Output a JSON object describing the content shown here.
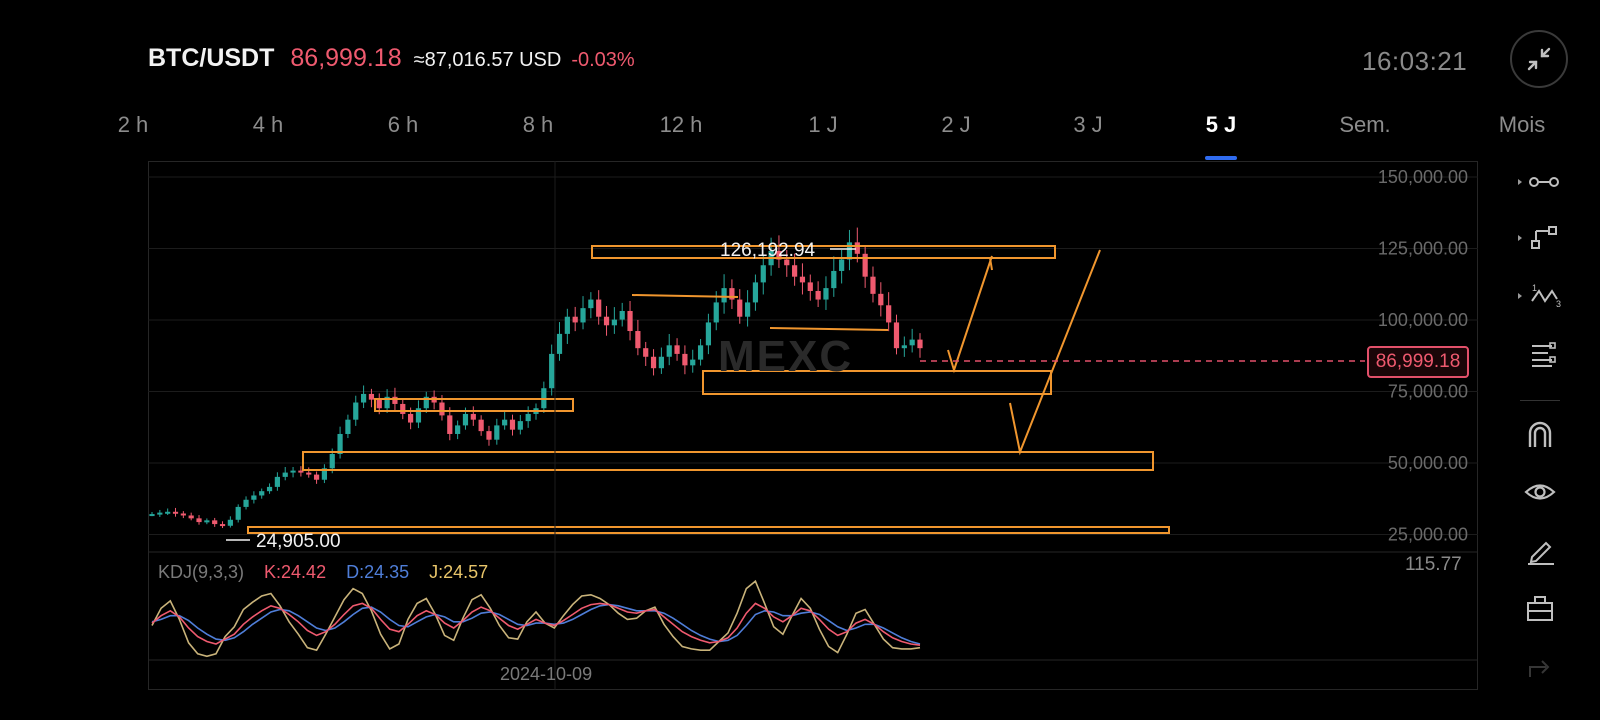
{
  "header": {
    "pair": "BTC/USDT",
    "price": "86,999.18",
    "usd_equiv": "≈87,016.57 USD",
    "change": "-0.03%",
    "clock": "16:03:21",
    "collapse_icon": "collapse-arrows-icon"
  },
  "tabs": [
    {
      "label": "2 h"
    },
    {
      "label": "4 h"
    },
    {
      "label": "6 h"
    },
    {
      "label": "8 h"
    },
    {
      "label": "12 h"
    },
    {
      "label": "1 J"
    },
    {
      "label": "2 J"
    },
    {
      "label": "3 J"
    },
    {
      "label": "5 J",
      "active": true
    },
    {
      "label": "Sem."
    },
    {
      "label": "Mois"
    }
  ],
  "price_tag": "86,999.18",
  "annotations": {
    "high": "126,192.94",
    "low": "24,905.00"
  },
  "watermark": "MEXC",
  "kdj": {
    "name": "KDJ(9,3,3)",
    "k": "K:24.42",
    "d": "D:24.35",
    "j": "J:24.57",
    "scale_max": "115.77"
  },
  "date_label": "2024-10-09",
  "toolbar": [
    {
      "icon": "horizontal-line-icon"
    },
    {
      "icon": "trend-line-icon"
    },
    {
      "icon": "pattern-icon"
    },
    {
      "icon": "fibonacci-icon"
    },
    {
      "icon": "magnet-icon"
    },
    {
      "icon": "eye-icon"
    },
    {
      "icon": "pencil-icon"
    },
    {
      "icon": "briefcase-icon"
    },
    {
      "icon": "share-icon"
    }
  ],
  "colors": {
    "up": "#26a69a",
    "down": "#ef5a6f",
    "drawing": "#f0962e",
    "accent": "#2f6bf0",
    "k": "#ef5a6f",
    "d": "#4f7ed8",
    "j": "#c9b37a"
  },
  "chart_data": {
    "type": "candlestick",
    "y_ticks": [
      "150,000.00",
      "125,000.00",
      "100,000.00",
      "75,000.00",
      "50,000.00",
      "25,000.00"
    ],
    "ylim": [
      18000,
      150000
    ],
    "last_price": 86999.18,
    "high": 126192.94,
    "low": 24905.0,
    "close_series": [
      29000,
      29500,
      29800,
      29200,
      28500,
      27500,
      26200,
      26800,
      25500,
      24905,
      27000,
      31500,
      34000,
      35500,
      37000,
      38500,
      42000,
      43500,
      44200,
      43500,
      42800,
      41000,
      45000,
      50000,
      57000,
      62000,
      68000,
      71000,
      69000,
      66000,
      70000,
      67500,
      64000,
      61000,
      66000,
      70000,
      68000,
      63500,
      57000,
      60000,
      64000,
      62000,
      58000,
      55000,
      60000,
      62000,
      58500,
      61500,
      64000,
      66000,
      73000,
      85000,
      92000,
      98000,
      96000,
      101000,
      104000,
      98000,
      95000,
      97000,
      100000,
      93000,
      87000,
      84000,
      80000,
      84000,
      88000,
      85000,
      81000,
      83000,
      88000,
      96000,
      103000,
      108000,
      104000,
      98000,
      103000,
      110000,
      116000,
      121000,
      118000,
      116000,
      112000,
      110000,
      107000,
      104000,
      108000,
      114000,
      118000,
      124000,
      120000,
      112000,
      106000,
      102000,
      96000,
      87000,
      88000,
      90000,
      87000
    ],
    "kdj_k": [
      60,
      72,
      80,
      70,
      52,
      38,
      30,
      26,
      34,
      42,
      58,
      70,
      80,
      88,
      84,
      74,
      62,
      48,
      40,
      46,
      58,
      74,
      88,
      92,
      84,
      66,
      50,
      46,
      58,
      72,
      80,
      74,
      60,
      52,
      64,
      78,
      86,
      80,
      68,
      56,
      50,
      58,
      66,
      60,
      56,
      64,
      74,
      84,
      90,
      92,
      90,
      84,
      78,
      76,
      80,
      82,
      70,
      58,
      46,
      38,
      32,
      28,
      30,
      36,
      52,
      76,
      92,
      84,
      70,
      62,
      72,
      84,
      80,
      66,
      50,
      40,
      46,
      60,
      66,
      58,
      46,
      36,
      30,
      26,
      24
    ],
    "kdj_d": [
      62,
      66,
      72,
      72,
      64,
      52,
      42,
      34,
      32,
      36,
      46,
      58,
      68,
      78,
      82,
      80,
      72,
      62,
      52,
      48,
      52,
      62,
      74,
      84,
      86,
      78,
      66,
      56,
      54,
      62,
      70,
      74,
      70,
      62,
      62,
      68,
      76,
      78,
      74,
      66,
      58,
      56,
      60,
      60,
      58,
      60,
      66,
      74,
      82,
      88,
      90,
      88,
      84,
      80,
      80,
      80,
      76,
      68,
      58,
      48,
      40,
      34,
      30,
      32,
      40,
      56,
      74,
      80,
      78,
      72,
      72,
      76,
      78,
      74,
      64,
      54,
      48,
      52,
      58,
      58,
      52,
      44,
      36,
      30,
      26
    ],
    "kdj_j": [
      56,
      84,
      96,
      66,
      28,
      10,
      6,
      10,
      38,
      54,
      82,
      94,
      104,
      108,
      88,
      62,
      42,
      20,
      16,
      42,
      70,
      98,
      116,
      108,
      80,
      42,
      18,
      26,
      66,
      92,
      100,
      74,
      40,
      32,
      68,
      98,
      106,
      84,
      56,
      36,
      34,
      62,
      78,
      60,
      52,
      72,
      90,
      104,
      106,
      100,
      90,
      76,
      66,
      68,
      80,
      86,
      58,
      38,
      22,
      18,
      16,
      16,
      30,
      44,
      76,
      116,
      128,
      92,
      54,
      42,
      72,
      100,
      84,
      50,
      22,
      12,
      42,
      76,
      82,
      58,
      34,
      20,
      18,
      18,
      20
    ]
  }
}
